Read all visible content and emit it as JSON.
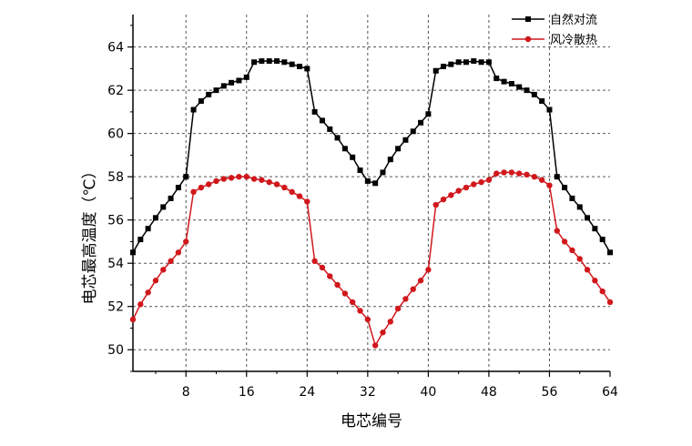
{
  "chart_data": {
    "type": "line",
    "title": "",
    "xlabel": "电芯编号",
    "ylabel": "电芯最高温度（℃）",
    "xlim": [
      1,
      64
    ],
    "ylim": [
      49,
      65.5
    ],
    "x_ticks": [
      8,
      16,
      24,
      32,
      40,
      48,
      56,
      64
    ],
    "y_ticks": [
      50,
      52,
      54,
      56,
      58,
      60,
      62,
      64
    ],
    "grid": true,
    "legend_position": "top-right",
    "x": [
      1,
      2,
      3,
      4,
      5,
      6,
      7,
      8,
      9,
      10,
      11,
      12,
      13,
      14,
      15,
      16,
      17,
      18,
      19,
      20,
      21,
      22,
      23,
      24,
      25,
      26,
      27,
      28,
      29,
      30,
      31,
      32,
      33,
      34,
      35,
      36,
      37,
      38,
      39,
      40,
      41,
      42,
      43,
      44,
      45,
      46,
      47,
      48,
      49,
      50,
      51,
      52,
      53,
      54,
      55,
      56,
      57,
      58,
      59,
      60,
      61,
      62,
      63,
      64
    ],
    "series": [
      {
        "name": "自然对流",
        "color": "#000000",
        "marker": "square",
        "values": [
          54.5,
          55.1,
          55.6,
          56.1,
          56.6,
          57.0,
          57.5,
          58.0,
          61.1,
          61.5,
          61.8,
          62.0,
          62.2,
          62.35,
          62.45,
          62.6,
          63.3,
          63.35,
          63.35,
          63.35,
          63.3,
          63.2,
          63.1,
          63.0,
          61.0,
          60.6,
          60.2,
          59.8,
          59.3,
          58.9,
          58.3,
          57.8,
          57.7,
          58.2,
          58.8,
          59.3,
          59.7,
          60.1,
          60.5,
          60.9,
          62.9,
          63.1,
          63.2,
          63.3,
          63.3,
          63.35,
          63.3,
          63.3,
          62.55,
          62.4,
          62.3,
          62.15,
          62.0,
          61.8,
          61.5,
          61.1,
          58.0,
          57.5,
          57.0,
          56.6,
          56.1,
          55.6,
          55.1,
          54.5
        ]
      },
      {
        "name": "风冷散热",
        "color": "#d0181c",
        "marker": "circle",
        "values": [
          51.4,
          52.1,
          52.65,
          53.2,
          53.7,
          54.1,
          54.5,
          55.0,
          57.3,
          57.5,
          57.65,
          57.8,
          57.9,
          57.95,
          58.0,
          58.0,
          57.9,
          57.85,
          57.75,
          57.65,
          57.5,
          57.3,
          57.1,
          56.85,
          54.1,
          53.8,
          53.4,
          53.0,
          52.6,
          52.2,
          51.8,
          51.4,
          50.2,
          50.8,
          51.3,
          51.9,
          52.35,
          52.8,
          53.2,
          53.7,
          56.7,
          56.95,
          57.15,
          57.35,
          57.5,
          57.65,
          57.75,
          57.85,
          58.15,
          58.2,
          58.2,
          58.15,
          58.1,
          58.0,
          57.85,
          57.6,
          55.5,
          55.0,
          54.6,
          54.2,
          53.7,
          53.2,
          52.7,
          52.2
        ]
      }
    ]
  }
}
